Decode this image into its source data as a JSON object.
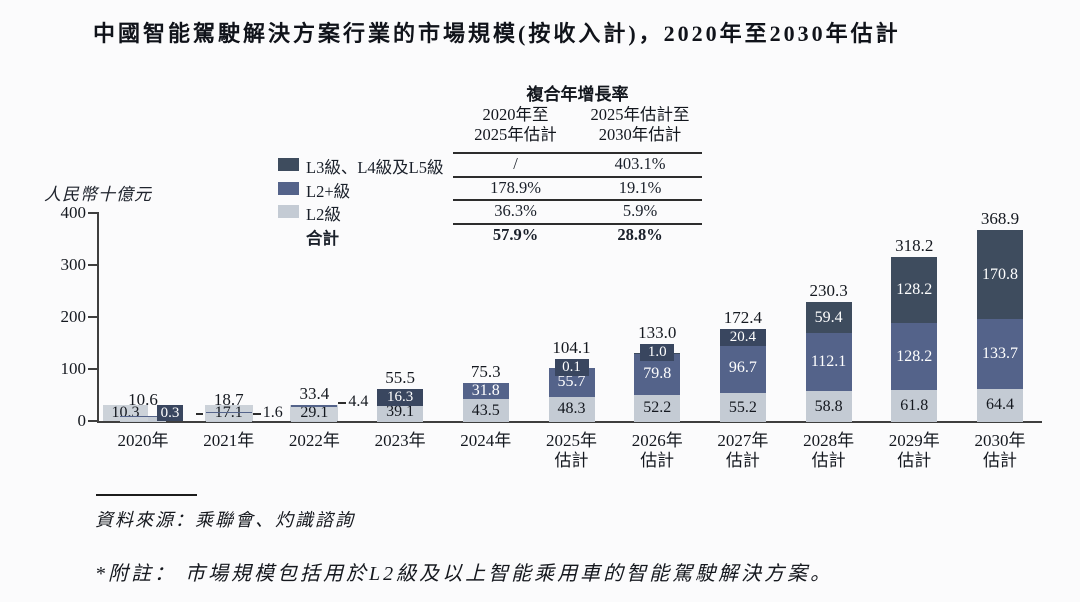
{
  "title": "中國智能駕駛解決方案行業的市場規模(按收入計)，2020年至2030年估計",
  "cagr_table": {
    "title": "複合年增長率",
    "col_headers": [
      "2020年至\n2025年估計",
      "2025年估計至\n2030年估計"
    ],
    "rows": [
      {
        "label": "L3級、L4級及L5級",
        "swatch": "#3e4c5e",
        "values": [
          "/",
          "403.1%"
        ],
        "bold": false
      },
      {
        "label": "L2+級",
        "swatch": "#54638a",
        "values": [
          "178.9%",
          "19.1%"
        ],
        "bold": false
      },
      {
        "label": "L2級",
        "swatch": "#c4cbd4",
        "values": [
          "36.3%",
          "5.9%"
        ],
        "bold": false
      },
      {
        "label": "合計",
        "swatch": null,
        "values": [
          "57.9%",
          "28.8%"
        ],
        "bold": true
      }
    ]
  },
  "chart_data": {
    "type": "bar",
    "stacked": true,
    "unit_label": "人民幣十億元",
    "categories": [
      "2020年",
      "2021年",
      "2022年",
      "2023年",
      "2024年",
      "2025年\n估計",
      "2026年\n估計",
      "2027年\n估計",
      "2028年\n估計",
      "2029年\n估計",
      "2030年\n估計"
    ],
    "series": [
      {
        "key": "l2",
        "name": "L2級",
        "color": "#c4cbd4",
        "values": [
          10.3,
          17.1,
          29.1,
          39.1,
          43.5,
          48.3,
          52.2,
          55.2,
          58.8,
          61.8,
          64.4
        ],
        "labels": [
          "10.3",
          "17.1",
          "29.1",
          "39.1",
          "43.5",
          "48.3",
          "52.2",
          "55.2",
          "58.8",
          "61.8",
          "64.4"
        ]
      },
      {
        "key": "l2plus",
        "name": "L2+級",
        "color": "#54638a",
        "values": [
          0.3,
          1.6,
          4.4,
          16.3,
          31.8,
          55.7,
          79.8,
          96.7,
          112.1,
          128.2,
          133.7
        ],
        "labels": [
          "0.3",
          "1.6",
          "4.4",
          "16.3",
          "31.8",
          "55.7",
          "79.8",
          "96.7",
          "112.1",
          "128.2",
          "133.7"
        ]
      },
      {
        "key": "l3",
        "name": "L3級、L4級及L5級",
        "color": "#3e4c5e",
        "values": [
          0,
          0,
          0,
          0,
          0,
          0.1,
          1.0,
          20.4,
          59.4,
          128.2,
          170.8
        ],
        "labels": [
          "",
          "",
          "",
          "",
          "",
          "0.1",
          "1.0",
          "20.4",
          "59.4",
          "128.2",
          "170.8"
        ]
      }
    ],
    "totals": [
      10.6,
      18.7,
      33.4,
      55.5,
      75.3,
      104.1,
      133.0,
      172.4,
      230.3,
      318.2,
      368.9
    ],
    "totals_labels": [
      "10.6",
      "18.7",
      "33.4",
      "55.5",
      "75.3",
      "104.1",
      "133.0",
      "172.4",
      "230.3",
      "318.2",
      "368.9"
    ],
    "y_axis": {
      "min": 0,
      "max": 400,
      "ticks": [
        0,
        100,
        200,
        300,
        400
      ]
    },
    "grid": false,
    "legend_position": "top-left-of-cagr-table"
  },
  "footer": {
    "source": "資料來源：乘聯會、灼識諮詢",
    "note": "*附註： 市場規模包括用於L2級及以上智能乘用車的智能駕駛解決方案。"
  },
  "colors": {
    "l3": "#3e4c5e",
    "l2plus": "#54638a",
    "l2": "#c4cbd4",
    "chip_light": "#ccd2d9",
    "badge": "#39465f",
    "text": "#14181f",
    "axis": "#3f3f3f"
  }
}
